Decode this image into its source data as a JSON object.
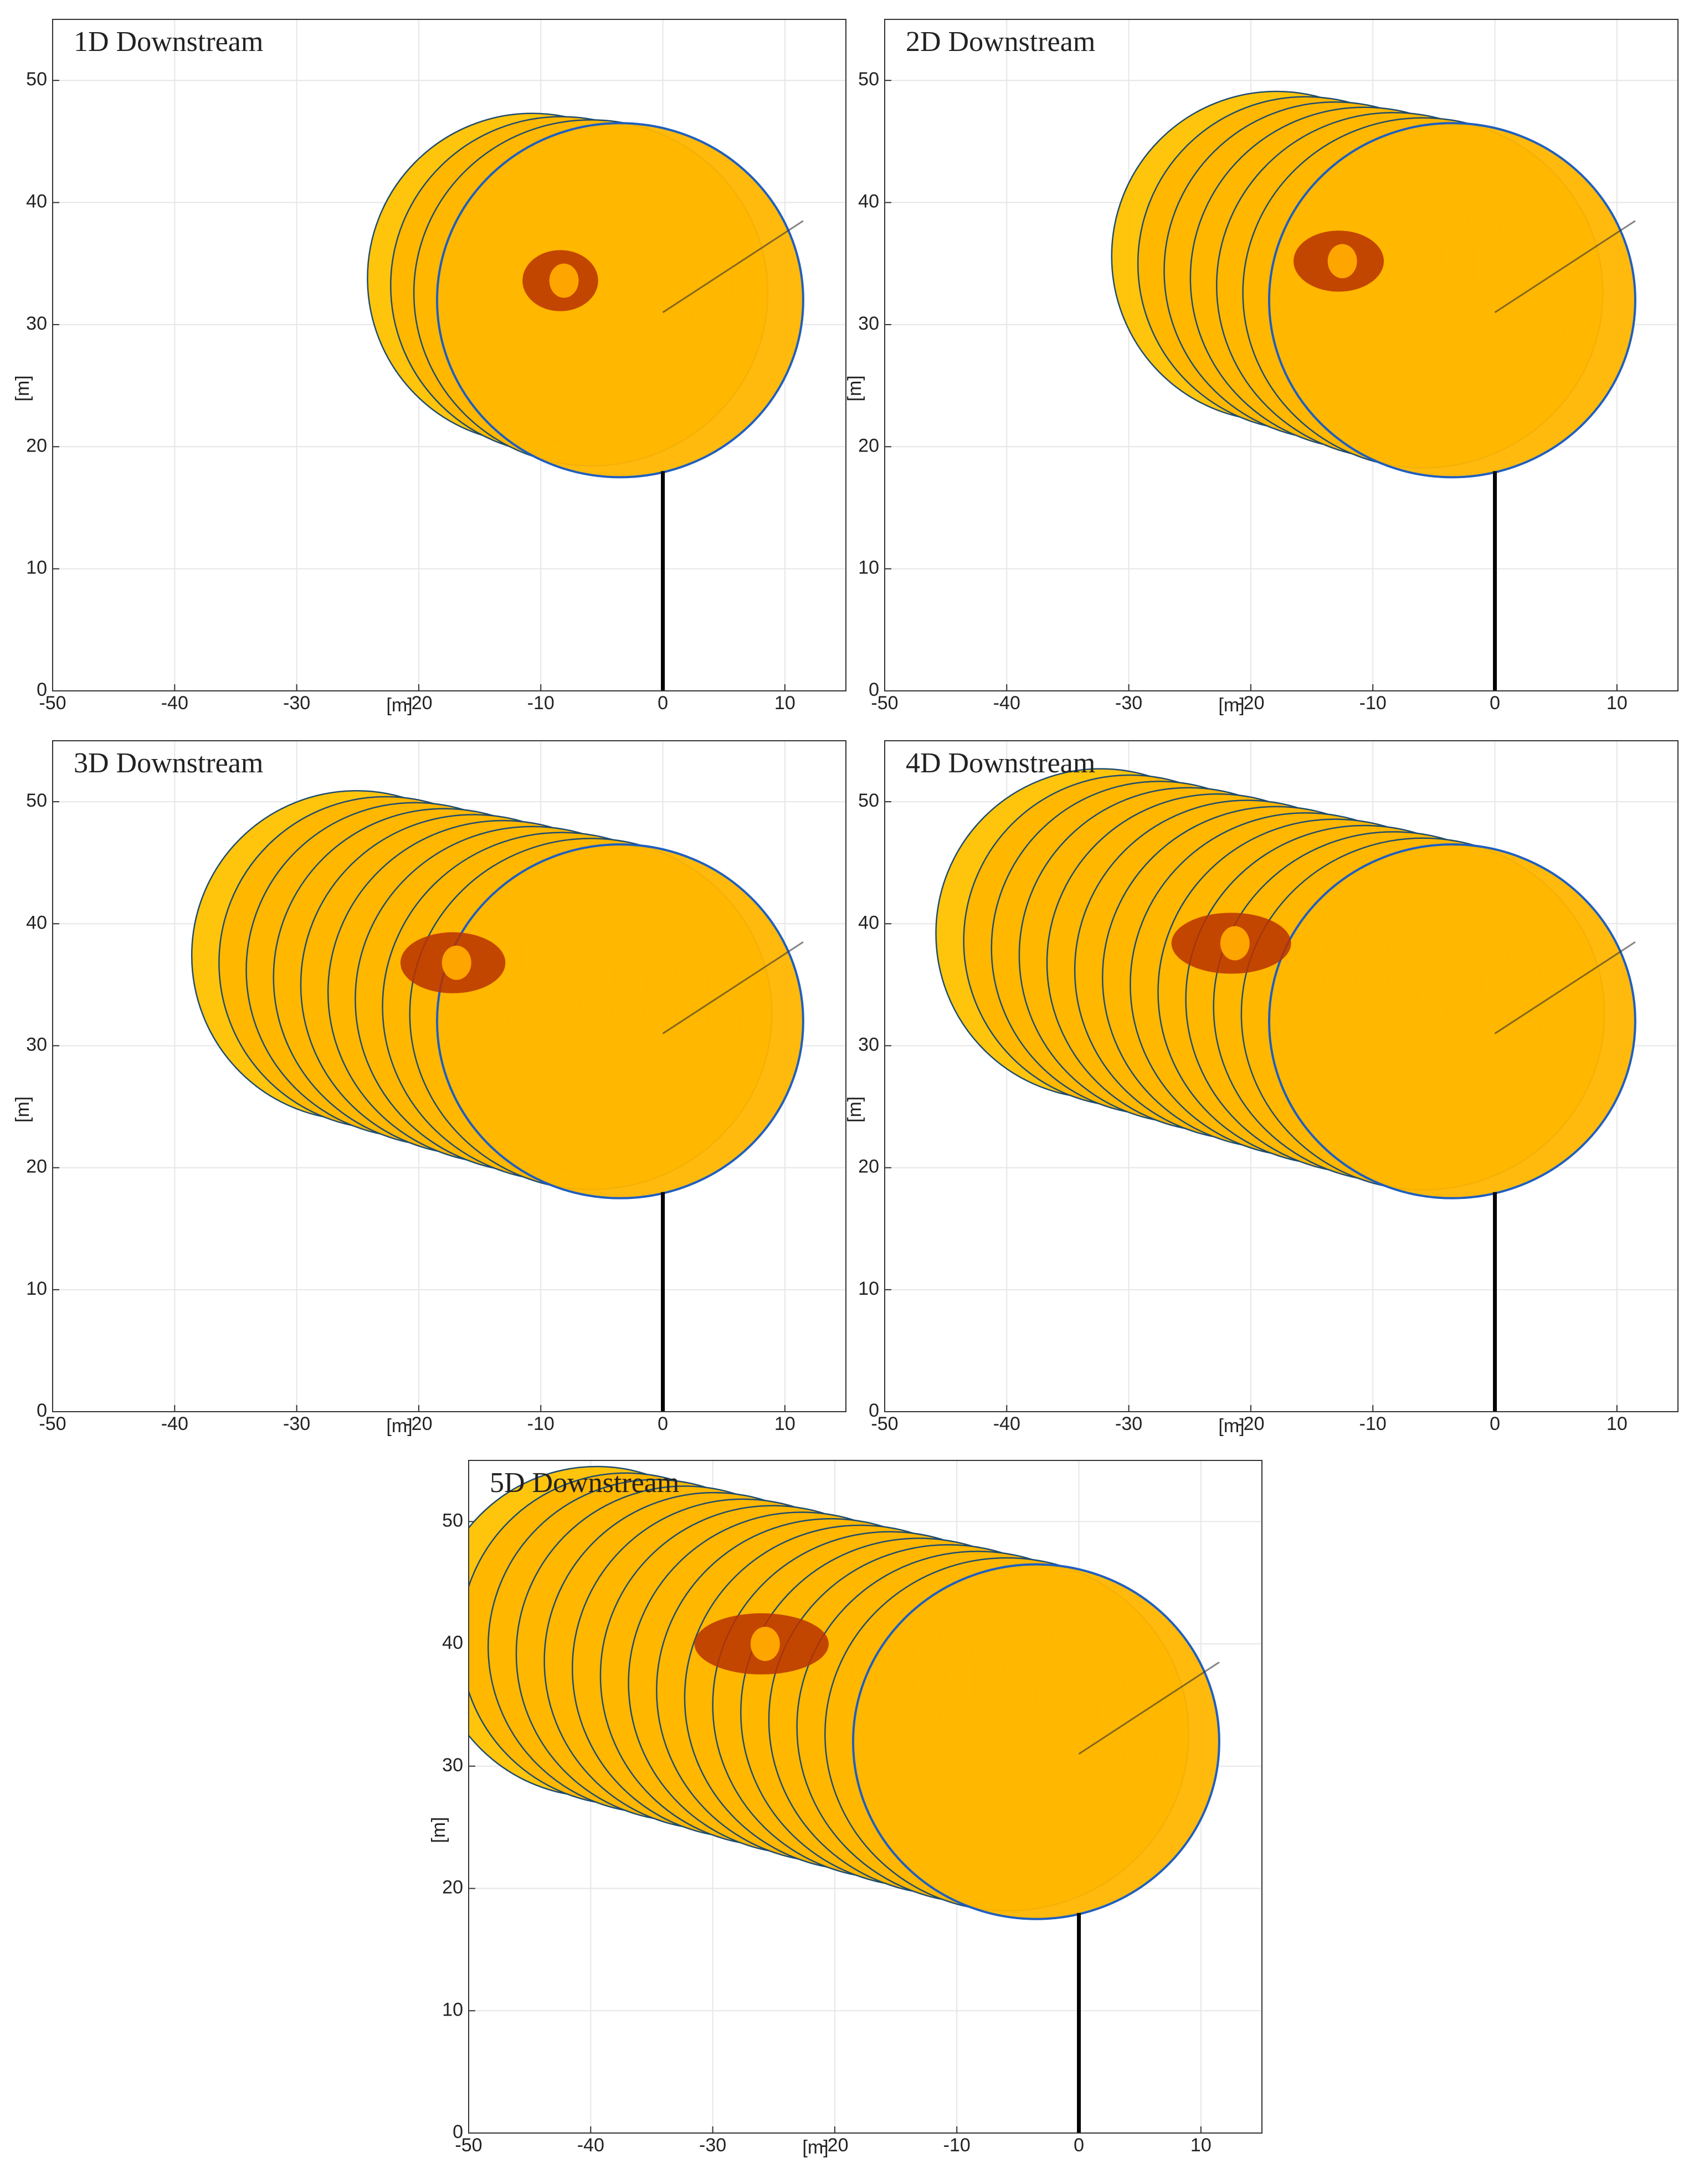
{
  "chart_data": [
    {
      "type": "surface",
      "title": "1D Downstream",
      "xlabel": "[m]",
      "ylabel": "[m]",
      "xlim": [
        -50,
        15
      ],
      "ylim": [
        0,
        55
      ],
      "xticks": [
        -50,
        -40,
        -30,
        -20,
        -10,
        0,
        10
      ],
      "yticks": [
        0,
        10,
        20,
        30,
        40,
        50
      ],
      "grid": true
    },
    {
      "type": "surface",
      "title": "2D Downstream",
      "xlabel": "[m]",
      "ylabel": "[m]",
      "xlim": [
        -50,
        15
      ],
      "ylim": [
        0,
        55
      ],
      "xticks": [
        -50,
        -40,
        -30,
        -20,
        -10,
        0,
        10
      ],
      "yticks": [
        0,
        10,
        20,
        30,
        40,
        50
      ],
      "grid": true
    },
    {
      "type": "surface",
      "title": "3D Downstream",
      "xlabel": "[m]",
      "ylabel": "[m]",
      "xlim": [
        -50,
        15
      ],
      "ylim": [
        0,
        55
      ],
      "xticks": [
        -50,
        -40,
        -30,
        -20,
        -10,
        0,
        10
      ],
      "yticks": [
        0,
        10,
        20,
        30,
        40,
        50
      ],
      "grid": true
    },
    {
      "type": "surface",
      "title": "4D Downstream",
      "xlabel": "[m]",
      "ylabel": "[m]",
      "xlim": [
        -50,
        15
      ],
      "ylim": [
        0,
        55
      ],
      "xticks": [
        -50,
        -40,
        -30,
        -20,
        -10,
        0,
        10
      ],
      "yticks": [
        0,
        10,
        20,
        30,
        40,
        50
      ],
      "grid": true
    },
    {
      "type": "surface",
      "title": "5D Downstream",
      "xlabel": "[m]",
      "ylabel": "[m]",
      "xlim": [
        -50,
        15
      ],
      "ylim": [
        0,
        55
      ],
      "xticks": [
        -50,
        -40,
        -30,
        -20,
        -10,
        0,
        10
      ],
      "yticks": [
        0,
        10,
        20,
        30,
        40,
        50
      ],
      "grid": true
    }
  ]
}
